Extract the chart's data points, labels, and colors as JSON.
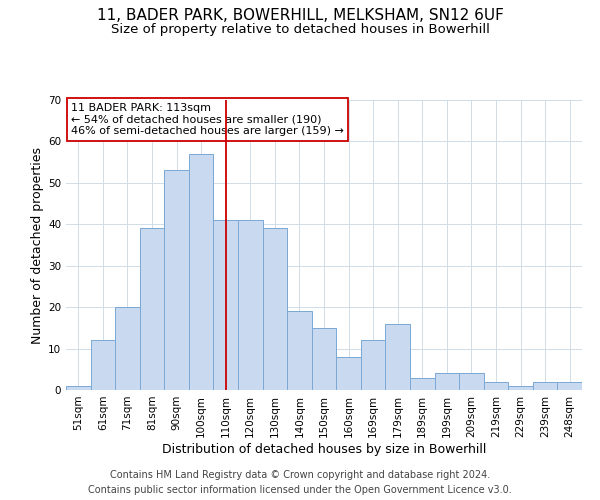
{
  "title": "11, BADER PARK, BOWERHILL, MELKSHAM, SN12 6UF",
  "subtitle": "Size of property relative to detached houses in Bowerhill",
  "xlabel": "Distribution of detached houses by size in Bowerhill",
  "ylabel": "Number of detached properties",
  "bar_labels": [
    "51sqm",
    "61sqm",
    "71sqm",
    "81sqm",
    "90sqm",
    "100sqm",
    "110sqm",
    "120sqm",
    "130sqm",
    "140sqm",
    "150sqm",
    "160sqm",
    "169sqm",
    "179sqm",
    "189sqm",
    "199sqm",
    "209sqm",
    "219sqm",
    "229sqm",
    "239sqm",
    "248sqm"
  ],
  "bar_values": [
    1,
    12,
    20,
    39,
    53,
    57,
    41,
    41,
    39,
    19,
    15,
    8,
    12,
    16,
    3,
    4,
    4,
    2,
    1,
    2,
    2
  ],
  "bar_color": "#c8d9f0",
  "bar_edge_color": "#7aa8d4",
  "reference_line_x": 6,
  "reference_line_color": "#cc0000",
  "annotation_line1": "11 BADER PARK: 113sqm",
  "annotation_line2": "← 54% of detached houses are smaller (190)",
  "annotation_line3": "46% of semi-detached houses are larger (159) →",
  "annotation_box_color": "#ffffff",
  "annotation_box_edge_color": "#cc0000",
  "ylim": [
    0,
    70
  ],
  "yticks": [
    0,
    10,
    20,
    30,
    40,
    50,
    60,
    70
  ],
  "footer_line1": "Contains HM Land Registry data © Crown copyright and database right 2024.",
  "footer_line2": "Contains public sector information licensed under the Open Government Licence v3.0.",
  "bg_color": "#ffffff",
  "grid_color": "#d0dde8",
  "title_fontsize": 11,
  "subtitle_fontsize": 9.5,
  "axis_label_fontsize": 9,
  "tick_fontsize": 7.5,
  "annotation_fontsize": 8,
  "footer_fontsize": 7
}
